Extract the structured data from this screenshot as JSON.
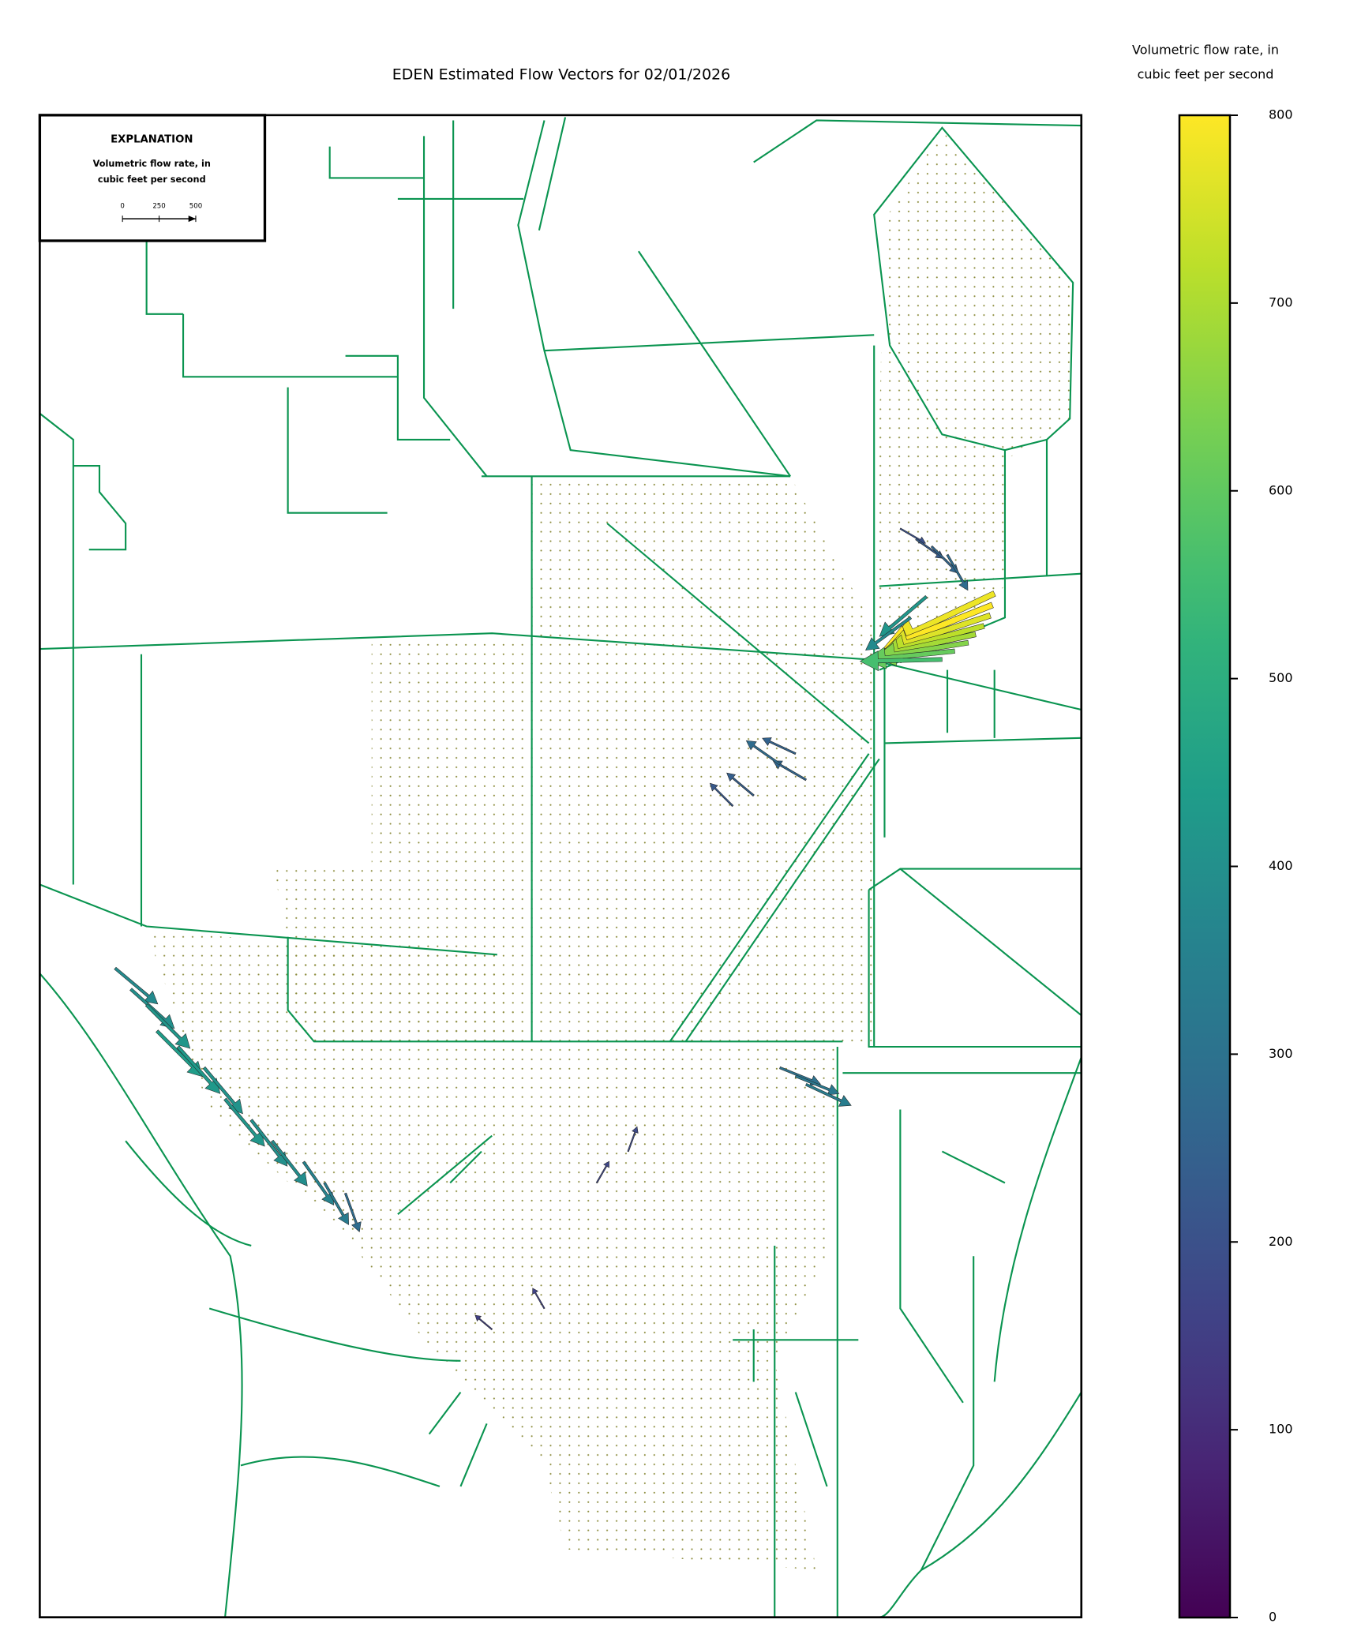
{
  "title": "EDEN Estimated Flow Vectors for 02/01/2026",
  "explanation": {
    "title": "EXPLANATION",
    "subtitle_lines": [
      "Volumetric flow rate, in",
      "cubic feet per second"
    ],
    "scale_ticks": [
      0,
      250,
      500
    ]
  },
  "colorbar": {
    "label_lines": [
      "Volumetric flow rate, in",
      "cubic feet per second"
    ],
    "lim": [
      0,
      800
    ],
    "ticks": [
      0,
      100,
      200,
      300,
      400,
      500,
      600,
      700,
      800
    ],
    "colormap": "viridis_r"
  },
  "vectors": {
    "magnitudes": [
      780,
      800,
      760,
      720,
      690,
      650,
      610,
      560,
      420,
      380,
      380,
      400,
      420,
      440,
      430,
      410,
      420,
      400,
      390,
      360,
      330,
      280,
      260,
      280,
      240,
      220,
      250,
      200,
      230,
      260,
      280,
      300,
      320,
      340,
      180,
      170,
      160,
      150
    ]
  }
}
